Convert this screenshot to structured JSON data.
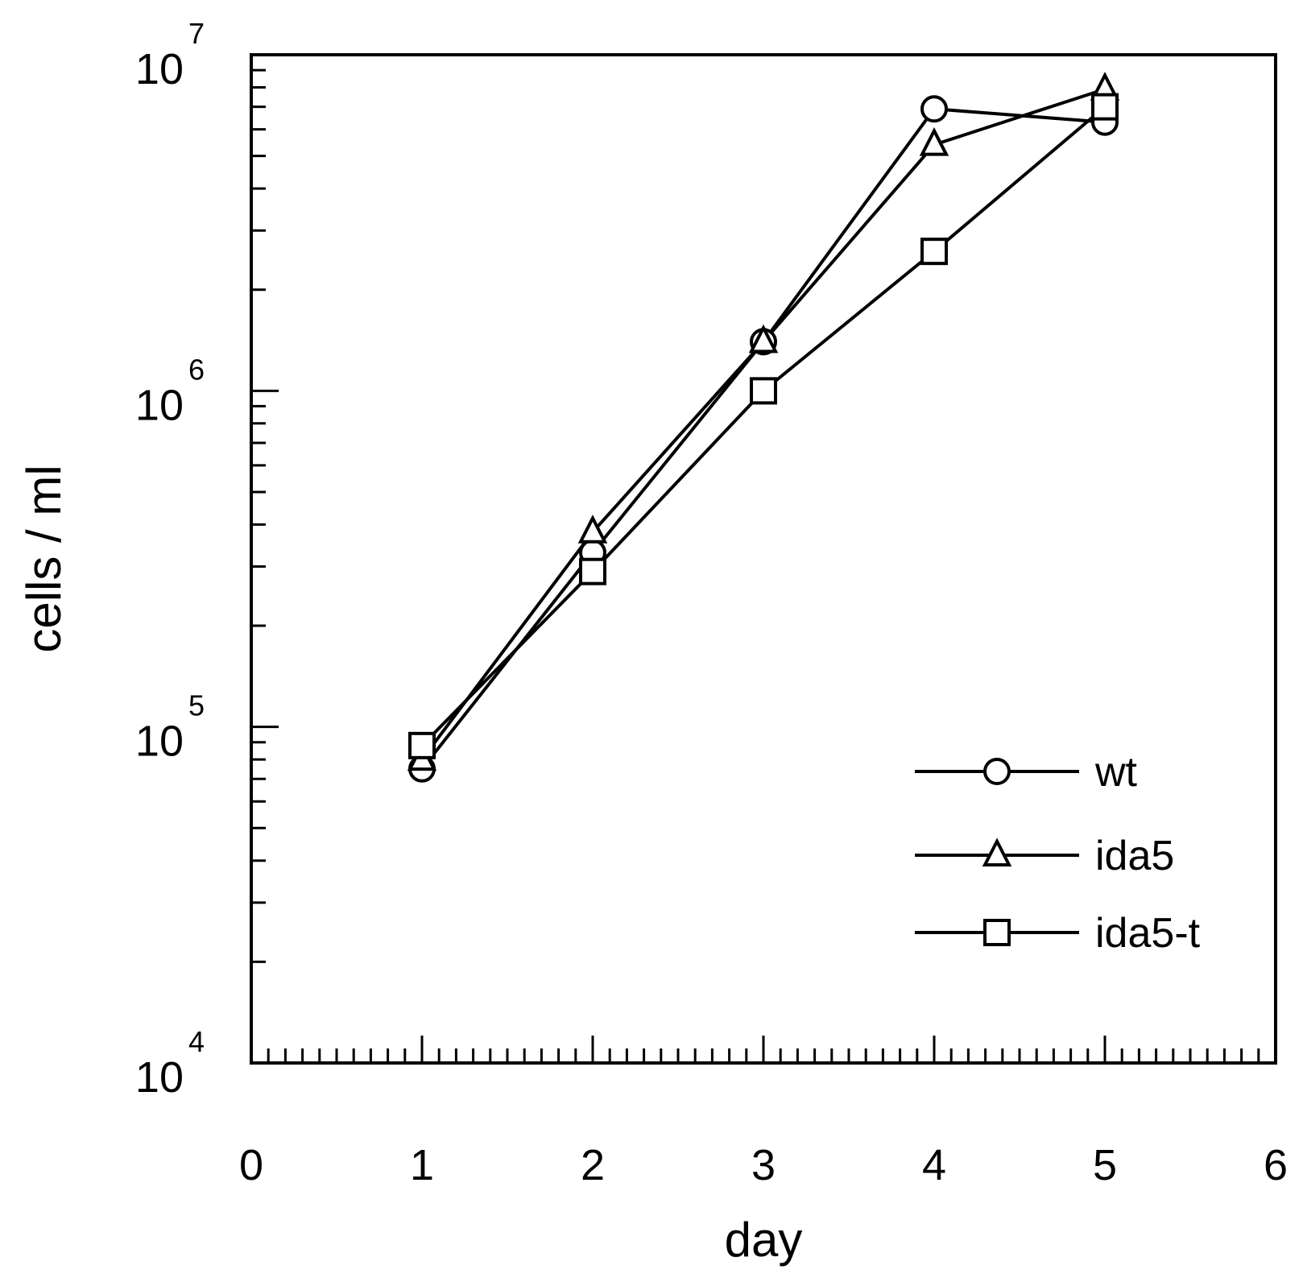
{
  "chart_data": {
    "type": "line",
    "title": "",
    "xlabel": "day",
    "ylabel": "cells / ml",
    "xlim": [
      0,
      6
    ],
    "ylim": [
      10000,
      10000000
    ],
    "yscale": "log",
    "x_ticks": [
      "0",
      "1",
      "2",
      "3",
      "4",
      "5",
      "6"
    ],
    "y_ticks": [
      {
        "base": "10",
        "exp": "4",
        "value": 10000
      },
      {
        "base": "10",
        "exp": "5",
        "value": 100000
      },
      {
        "base": "10",
        "exp": "6",
        "value": 1000000
      },
      {
        "base": "10",
        "exp": "7",
        "value": 10000000
      }
    ],
    "legend_position": "bottom-right",
    "grid": false,
    "series": [
      {
        "name": "wt",
        "marker": "circle",
        "x": [
          1,
          2,
          3,
          4,
          5
        ],
        "values": [
          75000,
          330000,
          1400000,
          6900000,
          6300000
        ]
      },
      {
        "name": "ida5",
        "marker": "triangle",
        "x": [
          1,
          2,
          3,
          4,
          5
        ],
        "values": [
          80000,
          380000,
          1400000,
          5400000,
          7900000
        ]
      },
      {
        "name": "ida5-t",
        "marker": "square",
        "x": [
          1,
          2,
          3,
          4,
          5
        ],
        "values": [
          88000,
          290000,
          1000000,
          2600000,
          7000000
        ]
      }
    ]
  }
}
